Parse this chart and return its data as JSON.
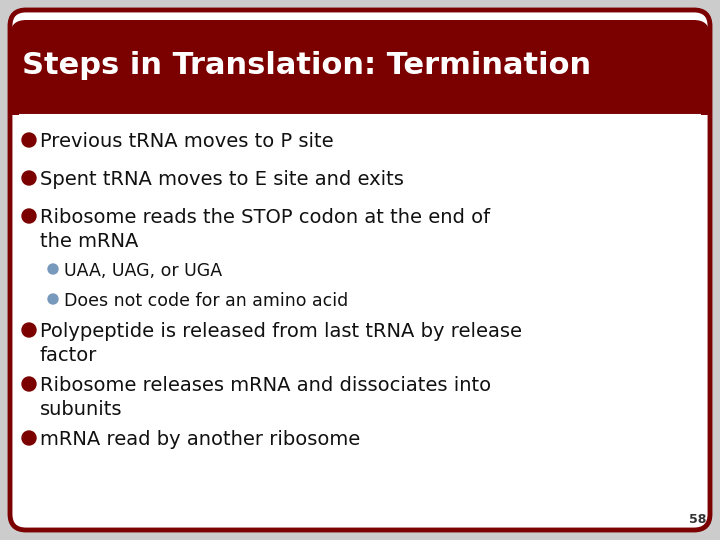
{
  "title": "Steps in Translation: Termination",
  "title_bg_color": "#7B0000",
  "title_text_color": "#FFFFFF",
  "slide_bg_color": "#F0F0F0",
  "border_color": "#7B0000",
  "bullet_color": "#7B0000",
  "sub_bullet_color": "#7799BB",
  "text_color": "#111111",
  "page_number": "58",
  "title_fontsize": 22,
  "body_fontsize": 14,
  "sub_fontsize": 12.5,
  "bullets": [
    {
      "level": 1,
      "text": "Previous tRNA moves to P site",
      "lines": 1
    },
    {
      "level": 1,
      "text": "Spent tRNA moves to E site and exits",
      "lines": 1
    },
    {
      "level": 1,
      "text": "Ribosome reads the STOP codon at the end of\nthe mRNA",
      "lines": 2
    },
    {
      "level": 2,
      "text": "UAA, UAG, or UGA",
      "lines": 1
    },
    {
      "level": 2,
      "text": "Does not code for an amino acid",
      "lines": 1
    },
    {
      "level": 1,
      "text": "Polypeptide is released from last tRNA by release\nfactor",
      "lines": 2
    },
    {
      "level": 1,
      "text": "Ribosome releases mRNA and dissociates into\nsubunits",
      "lines": 2
    },
    {
      "level": 1,
      "text": "mRNA read by another ribosome",
      "lines": 1
    }
  ]
}
